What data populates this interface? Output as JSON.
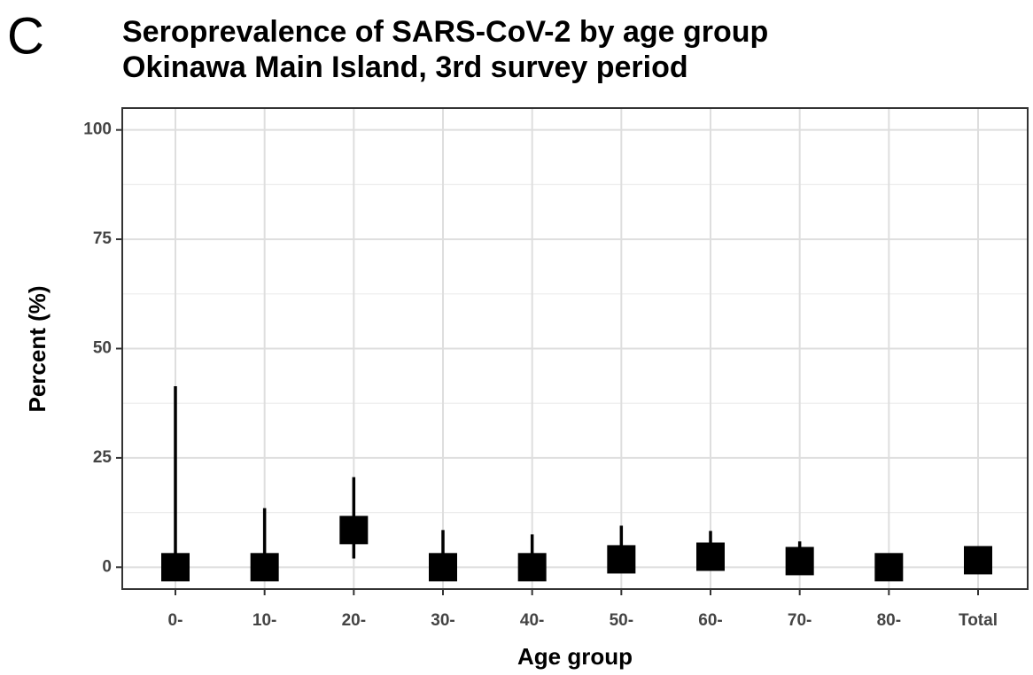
{
  "panel_label": "C",
  "chart_data": {
    "type": "errorbar",
    "title": "Seroprevalence of SARS-CoV-2 by age group",
    "subtitle": "Okinawa Main Island, 3rd survey period",
    "x_label": "Age group",
    "y_label": "Percent (%)",
    "categories": [
      "0-",
      "10-",
      "20-",
      "30-",
      "40-",
      "50-",
      "60-",
      "70-",
      "80-",
      "Total"
    ],
    "series": [
      {
        "name": "Seroprevalence",
        "color": "#000000",
        "values": [
          0,
          0,
          8.5,
          0,
          0,
          1.8,
          2.4,
          1.4,
          0,
          1.6
        ],
        "lower": [
          0,
          0,
          2.0,
          0,
          0,
          0,
          0.2,
          0,
          0,
          0.5
        ],
        "upper": [
          41.4,
          13.5,
          20.6,
          8.5,
          7.5,
          9.5,
          8.3,
          5.9,
          2,
          3
        ]
      }
    ],
    "ylim": [
      -5,
      105
    ],
    "yticks": [
      0,
      25,
      50,
      75,
      100
    ],
    "minor_yticks": [
      12.5,
      37.5,
      62.5,
      87.5
    ],
    "grid": true
  }
}
